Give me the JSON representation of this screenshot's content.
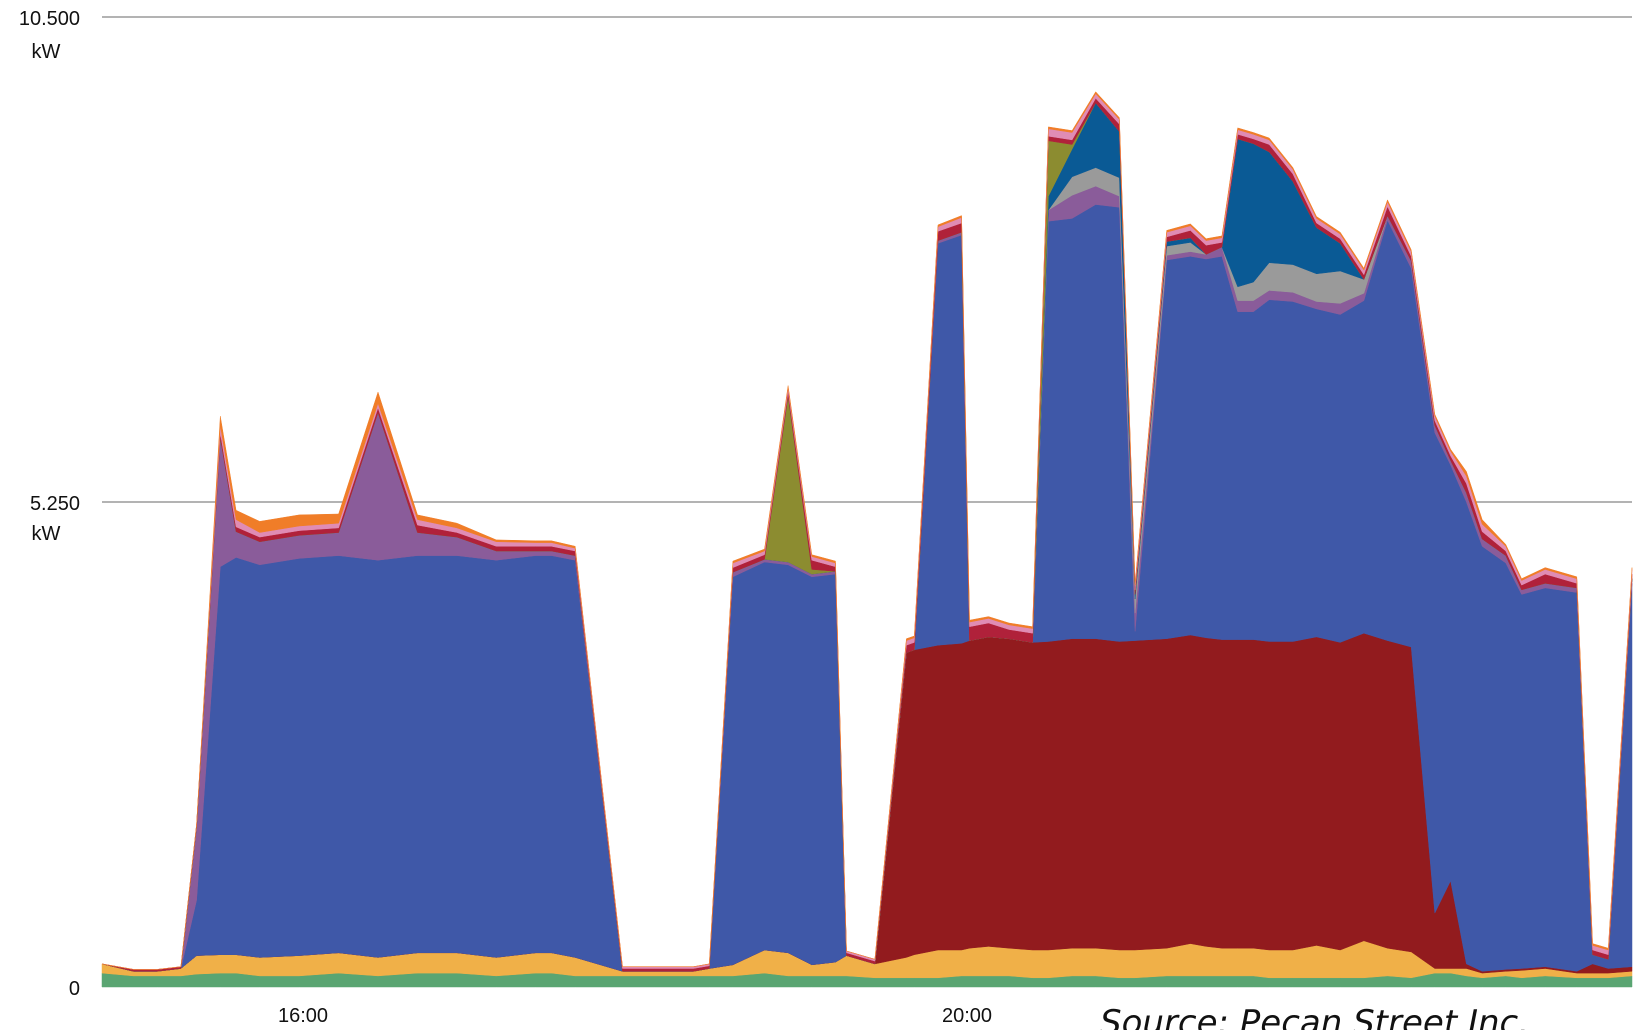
{
  "chart_data": {
    "type": "area",
    "stacked": true,
    "title": "",
    "xlabel": "",
    "ylabel": "",
    "ylim": [
      0,
      10.5
    ],
    "yticks": [
      {
        "value": 0,
        "label": "0",
        "unit": ""
      },
      {
        "value": 5.25,
        "label": "5.250",
        "unit": "kW"
      },
      {
        "value": 10.5,
        "label": "10.500",
        "unit": "kW"
      }
    ],
    "xlim": [
      14.0,
      23.7
    ],
    "xticks": [
      {
        "value": 16.0,
        "label": "16:00"
      },
      {
        "value": 20.0,
        "label": "20:00"
      }
    ],
    "grid": "horizontal",
    "legend": "none",
    "source": "Source: Pecan Street Inc.",
    "x": [
      14.0,
      14.2,
      14.35,
      14.5,
      14.6,
      14.75,
      14.85,
      15.0,
      15.25,
      15.5,
      15.75,
      16.0,
      16.25,
      16.5,
      16.75,
      16.85,
      17.0,
      17.3,
      17.5,
      17.75,
      17.85,
      18.0,
      18.2,
      18.35,
      18.5,
      18.65,
      18.72,
      18.9,
      19.1,
      19.15,
      19.3,
      19.45,
      19.5,
      19.62,
      19.75,
      19.9,
      20.0,
      20.15,
      20.3,
      20.45,
      20.55,
      20.75,
      20.9,
      21.0,
      21.1,
      21.2,
      21.3,
      21.4,
      21.55,
      21.7,
      21.85,
      22.0,
      22.15,
      22.3,
      22.45,
      22.55,
      22.65,
      22.75,
      22.9,
      23.0,
      23.15,
      23.35,
      23.45,
      23.55,
      23.7
    ],
    "series": [
      {
        "name": "",
        "color": "#5aa572",
        "values": [
          0.15,
          0.12,
          0.12,
          0.12,
          0.14,
          0.15,
          0.15,
          0.12,
          0.12,
          0.15,
          0.12,
          0.15,
          0.15,
          0.12,
          0.15,
          0.15,
          0.12,
          0.12,
          0.12,
          0.12,
          0.12,
          0.12,
          0.15,
          0.12,
          0.12,
          0.12,
          0.12,
          0.1,
          0.1,
          0.1,
          0.1,
          0.12,
          0.12,
          0.12,
          0.12,
          0.1,
          0.1,
          0.12,
          0.12,
          0.1,
          0.1,
          0.12,
          0.12,
          0.12,
          0.12,
          0.12,
          0.12,
          0.1,
          0.1,
          0.1,
          0.1,
          0.1,
          0.12,
          0.1,
          0.15,
          0.15,
          0.12,
          0.1,
          0.12,
          0.1,
          0.12,
          0.1,
          0.1,
          0.1,
          0.12
        ]
      },
      {
        "name": "",
        "color": "#f0b048",
        "values": [
          0.1,
          0.05,
          0.05,
          0.08,
          0.2,
          0.2,
          0.2,
          0.2,
          0.22,
          0.22,
          0.2,
          0.22,
          0.22,
          0.2,
          0.22,
          0.22,
          0.2,
          0.05,
          0.05,
          0.05,
          0.08,
          0.12,
          0.25,
          0.25,
          0.12,
          0.15,
          0.22,
          0.15,
          0.22,
          0.25,
          0.3,
          0.28,
          0.3,
          0.32,
          0.3,
          0.3,
          0.3,
          0.3,
          0.3,
          0.3,
          0.3,
          0.3,
          0.35,
          0.32,
          0.3,
          0.3,
          0.3,
          0.3,
          0.3,
          0.35,
          0.3,
          0.4,
          0.3,
          0.28,
          0.05,
          0.05,
          0.08,
          0.05,
          0.05,
          0.08,
          0.08,
          0.05,
          0.05,
          0.05,
          0.05
        ]
      },
      {
        "name": "",
        "color": "#921b1e",
        "values": [
          0,
          0,
          0,
          0,
          0,
          0,
          0,
          0,
          0,
          0,
          0,
          0,
          0,
          0,
          0,
          0,
          0,
          0,
          0,
          0,
          0,
          0,
          0,
          0,
          0,
          0,
          0,
          0,
          3.3,
          3.3,
          3.3,
          3.32,
          3.33,
          3.35,
          3.35,
          3.33,
          3.34,
          3.35,
          3.35,
          3.34,
          3.35,
          3.35,
          3.34,
          3.34,
          3.34,
          3.34,
          3.34,
          3.34,
          3.34,
          3.34,
          3.33,
          3.33,
          3.33,
          3.3,
          0.6,
          0.95,
          0.05,
          0.02,
          0.02,
          0.02,
          0.02,
          0.02,
          0.1,
          0.05,
          0.05
        ]
      },
      {
        "name": "",
        "color": "#3f58a8",
        "values": [
          0,
          0,
          0,
          0,
          0.6,
          4.2,
          4.3,
          4.25,
          4.3,
          4.3,
          4.3,
          4.3,
          4.3,
          4.3,
          4.3,
          4.3,
          4.3,
          0,
          0,
          0,
          0,
          4.2,
          4.2,
          4.2,
          4.2,
          4.2,
          0,
          0,
          0,
          0,
          4.35,
          4.42,
          0,
          0,
          0,
          0,
          4.55,
          4.55,
          4.7,
          4.7,
          0.1,
          4.1,
          4.1,
          4.1,
          4.15,
          3.55,
          3.55,
          3.7,
          3.68,
          3.55,
          3.55,
          3.6,
          4.55,
          4.1,
          5.2,
          4.5,
          5.0,
          4.6,
          4.4,
          4.05,
          4.1,
          4.1,
          0.1,
          0.1,
          4.15
        ]
      },
      {
        "name": "",
        "color": "#8a5c9a",
        "values": [
          0,
          0,
          0,
          0,
          0.8,
          1.4,
          0.28,
          0.25,
          0.25,
          0.25,
          1.6,
          0.25,
          0.2,
          0.1,
          0.05,
          0.05,
          0.05,
          0,
          0,
          0,
          0,
          0.05,
          0.03,
          0.03,
          0.03,
          0.03,
          0,
          0,
          0,
          0,
          0.03,
          0.03,
          0,
          0,
          0,
          0,
          0.12,
          0.25,
          0.2,
          0.12,
          0.2,
          0.05,
          0.05,
          0.05,
          0.1,
          0.12,
          0.12,
          0.1,
          0.1,
          0.08,
          0.12,
          0.08,
          0.05,
          0.08,
          0.08,
          0.05,
          0.1,
          0.08,
          0.08,
          0.05,
          0.05,
          0.05,
          0,
          0,
          0.05
        ]
      },
      {
        "name": "",
        "color": "#9a9a9a",
        "values": [
          0,
          0,
          0,
          0,
          0,
          0,
          0,
          0,
          0,
          0,
          0,
          0,
          0,
          0,
          0,
          0,
          0,
          0,
          0,
          0,
          0,
          0,
          0,
          0,
          0,
          0,
          0,
          0,
          0,
          0,
          0,
          0,
          0,
          0,
          0,
          0,
          0,
          0.2,
          0.2,
          0.2,
          0.15,
          0.1,
          0.1,
          0,
          0,
          0.15,
          0.2,
          0.3,
          0.3,
          0.3,
          0.35,
          0.15,
          0,
          0,
          0,
          0,
          0,
          0,
          0,
          0,
          0,
          0,
          0,
          0,
          0
        ]
      },
      {
        "name": "",
        "color": "#0a5a95",
        "values": [
          0,
          0,
          0,
          0,
          0,
          0,
          0,
          0,
          0,
          0,
          0,
          0,
          0,
          0,
          0,
          0,
          0,
          0,
          0,
          0,
          0,
          0,
          0,
          0,
          0,
          0,
          0,
          0,
          0,
          0,
          0,
          0,
          0,
          0,
          0,
          0,
          0.15,
          0.3,
          0.7,
          0.5,
          0.05,
          0.05,
          0.05,
          0,
          0,
          1.6,
          1.5,
          1.2,
          0.9,
          0.5,
          0.3,
          0,
          0,
          0,
          0,
          0,
          0,
          0,
          0,
          0,
          0,
          0,
          0,
          0,
          0
        ]
      },
      {
        "name": "",
        "color": "#8c8c30",
        "values": [
          0,
          0,
          0,
          0,
          0,
          0,
          0,
          0,
          0,
          0,
          0,
          0,
          0,
          0,
          0,
          0,
          0,
          0,
          0,
          0,
          0,
          0,
          0,
          1.8,
          0.05,
          0,
          0,
          0,
          0,
          0,
          0,
          0,
          0,
          0,
          0,
          0,
          0.6,
          0.05,
          0,
          0,
          0,
          0,
          0,
          0,
          0,
          0,
          0,
          0,
          0,
          0,
          0,
          0,
          0,
          0,
          0,
          0,
          0,
          0,
          0,
          0,
          0,
          0,
          0,
          0,
          0
        ]
      },
      {
        "name": "",
        "color": "#b0213a",
        "values": [
          0,
          0.02,
          0.02,
          0.02,
          0.02,
          0.05,
          0.05,
          0.05,
          0.05,
          0.05,
          0.05,
          0.08,
          0.05,
          0.05,
          0.05,
          0.05,
          0.05,
          0.03,
          0.03,
          0.03,
          0.03,
          0.05,
          0.05,
          0.05,
          0.1,
          0.05,
          0.03,
          0.03,
          0.08,
          0.08,
          0.1,
          0.1,
          0.15,
          0.15,
          0.1,
          0.1,
          0.05,
          0.05,
          0.05,
          0.08,
          0.05,
          0.05,
          0.08,
          0.1,
          0.05,
          0.05,
          0.05,
          0.08,
          0.08,
          0.05,
          0.05,
          0.05,
          0.1,
          0.05,
          0.05,
          0.05,
          0.1,
          0.08,
          0.05,
          0.05,
          0.1,
          0.05,
          0.05,
          0.05,
          0.05
        ]
      },
      {
        "name": "",
        "color": "#e08cb4",
        "values": [
          0,
          0,
          0,
          0,
          0,
          0.08,
          0.08,
          0.05,
          0.05,
          0.05,
          0.05,
          0.06,
          0.05,
          0.05,
          0.04,
          0.04,
          0.03,
          0.02,
          0.02,
          0.02,
          0.02,
          0.05,
          0.04,
          0.04,
          0.04,
          0.04,
          0.02,
          0.02,
          0.05,
          0.05,
          0.05,
          0.06,
          0.05,
          0.05,
          0.05,
          0.05,
          0.08,
          0.08,
          0.05,
          0.05,
          0.05,
          0.05,
          0.05,
          0.05,
          0.05,
          0.05,
          0.05,
          0.05,
          0.05,
          0.05,
          0.05,
          0.05,
          0.05,
          0.05,
          0.05,
          0.05,
          0.08,
          0.08,
          0.05,
          0.05,
          0.05,
          0.05,
          0.05,
          0.05,
          0.05
        ]
      },
      {
        "name": "",
        "color": "#f07d28",
        "values": [
          0,
          0,
          0,
          0,
          0,
          0.1,
          0.1,
          0.12,
          0.12,
          0.1,
          0.12,
          0.05,
          0.05,
          0.02,
          0.02,
          0.02,
          0.02,
          0,
          0,
          0,
          0,
          0.02,
          0.02,
          0.02,
          0.02,
          0.02,
          0,
          0,
          0.02,
          0.02,
          0.02,
          0.02,
          0.02,
          0.02,
          0.02,
          0.02,
          0.02,
          0.02,
          0.02,
          0.02,
          0.02,
          0.02,
          0.02,
          0.02,
          0.02,
          0.02,
          0.02,
          0.02,
          0.02,
          0.02,
          0.02,
          0.02,
          0.02,
          0.02,
          0.02,
          0.02,
          0.05,
          0.05,
          0.02,
          0.02,
          0.02,
          0.02,
          0.02,
          0.02,
          0.02
        ]
      }
    ]
  }
}
